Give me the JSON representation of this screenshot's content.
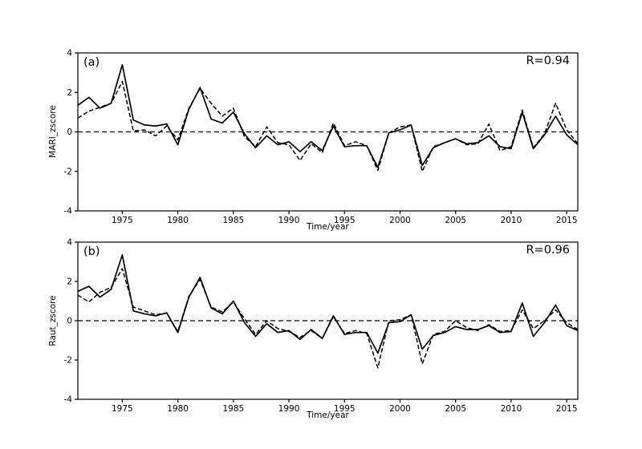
{
  "figure": {
    "colors": {
      "background": "#ffffff",
      "axis": "#000000",
      "line": "#000000"
    }
  },
  "chart_data": [
    {
      "type": "line",
      "panel_label": "(a)",
      "annotation": "R=0.94",
      "xlabel": "Time/year",
      "ylabel": "MARI_zscore",
      "xlim": [
        1971,
        2016
      ],
      "ylim": [
        -4,
        4
      ],
      "xticks": [
        1975,
        1980,
        1985,
        1990,
        1995,
        2000,
        2005,
        2010,
        2015
      ],
      "yticks": [
        -4,
        -2,
        0,
        2,
        4
      ],
      "grid": false,
      "legend": "none",
      "zero_line": {
        "y": 0,
        "style": "dashed"
      },
      "x": [
        1971,
        1972,
        1973,
        1974,
        1975,
        1976,
        1977,
        1978,
        1979,
        1980,
        1981,
        1982,
        1983,
        1984,
        1985,
        1986,
        1987,
        1988,
        1989,
        1990,
        1991,
        1992,
        1993,
        1994,
        1995,
        1996,
        1997,
        1998,
        1999,
        2000,
        2001,
        2002,
        2003,
        2004,
        2005,
        2006,
        2007,
        2008,
        2009,
        2010,
        2011,
        2012,
        2013,
        2014,
        2015,
        2016
      ],
      "series": [
        {
          "name": "solid",
          "style": "solid",
          "color": "#000000",
          "values": [
            1.35,
            1.75,
            1.2,
            1.45,
            3.4,
            0.6,
            0.35,
            0.3,
            0.4,
            -0.65,
            1.15,
            2.25,
            0.65,
            0.45,
            1.0,
            -0.1,
            -0.8,
            -0.2,
            -0.65,
            -0.5,
            -1.0,
            -0.5,
            -0.95,
            0.3,
            -0.75,
            -0.7,
            -0.7,
            -1.8,
            -0.05,
            0.1,
            0.35,
            -1.7,
            -0.8,
            -0.55,
            -0.35,
            -0.6,
            -0.55,
            -0.2,
            -0.75,
            -0.85,
            1.0,
            -0.85,
            -0.15,
            0.8,
            -0.15,
            -0.65
          ]
        },
        {
          "name": "dashed",
          "style": "dashed",
          "color": "#000000",
          "values": [
            0.7,
            1.05,
            1.25,
            1.45,
            2.55,
            0.05,
            0.1,
            -0.2,
            0.3,
            -0.4,
            1.2,
            2.2,
            1.45,
            0.8,
            1.2,
            -0.25,
            -0.75,
            0.25,
            -0.55,
            -0.65,
            -1.45,
            -0.6,
            -1.05,
            0.45,
            -0.7,
            -0.5,
            -0.7,
            -1.95,
            -0.05,
            0.25,
            0.35,
            -2.0,
            -0.75,
            -0.55,
            -0.35,
            -0.65,
            -0.6,
            0.4,
            -0.95,
            -0.75,
            1.1,
            -0.8,
            -0.1,
            1.45,
            0.1,
            -0.6
          ]
        }
      ]
    },
    {
      "type": "line",
      "panel_label": "(b)",
      "annotation": "R=0.96",
      "xlabel": "Time/year",
      "ylabel": "Raut_zscore",
      "xlim": [
        1971,
        2016
      ],
      "ylim": [
        -4,
        4
      ],
      "xticks": [
        1975,
        1980,
        1985,
        1990,
        1995,
        2000,
        2005,
        2010,
        2015
      ],
      "yticks": [
        -4,
        -2,
        0,
        2,
        4
      ],
      "grid": false,
      "legend": "none",
      "zero_line": {
        "y": 0,
        "style": "dashed"
      },
      "x": [
        1971,
        1972,
        1973,
        1974,
        1975,
        1976,
        1977,
        1978,
        1979,
        1980,
        1981,
        1982,
        1983,
        1984,
        1985,
        1986,
        1987,
        1988,
        1989,
        1990,
        1991,
        1992,
        1993,
        1994,
        1995,
        1996,
        1997,
        1998,
        1999,
        2000,
        2001,
        2002,
        2003,
        2004,
        2005,
        2006,
        2007,
        2008,
        2009,
        2010,
        2011,
        2012,
        2013,
        2014,
        2015,
        2016
      ],
      "series": [
        {
          "name": "solid",
          "style": "solid",
          "color": "#000000",
          "values": [
            1.5,
            1.75,
            1.2,
            1.6,
            3.35,
            0.5,
            0.35,
            0.25,
            0.4,
            -0.6,
            1.2,
            2.2,
            0.65,
            0.35,
            1.0,
            -0.1,
            -0.8,
            -0.15,
            -0.6,
            -0.5,
            -0.95,
            -0.45,
            -0.9,
            0.25,
            -0.7,
            -0.6,
            -0.6,
            -1.65,
            -0.1,
            -0.05,
            0.3,
            -1.45,
            -0.75,
            -0.6,
            -0.3,
            -0.45,
            -0.45,
            -0.25,
            -0.6,
            -0.55,
            0.9,
            -0.8,
            -0.1,
            0.8,
            -0.25,
            -0.5
          ]
        },
        {
          "name": "dashed",
          "style": "dashed",
          "color": "#000000",
          "values": [
            1.3,
            0.95,
            1.45,
            1.7,
            2.65,
            0.7,
            0.5,
            0.3,
            0.4,
            -0.55,
            1.25,
            2.1,
            0.7,
            0.45,
            0.95,
            0.1,
            -0.7,
            0.0,
            -0.4,
            -0.55,
            -0.85,
            -0.5,
            -0.9,
            0.2,
            -0.65,
            -0.5,
            -0.65,
            -2.4,
            0.0,
            0.05,
            0.3,
            -2.2,
            -0.7,
            -0.55,
            0.0,
            -0.35,
            -0.5,
            -0.2,
            -0.55,
            -0.5,
            0.55,
            -0.4,
            0.0,
            0.55,
            -0.1,
            -0.45
          ]
        }
      ]
    }
  ]
}
